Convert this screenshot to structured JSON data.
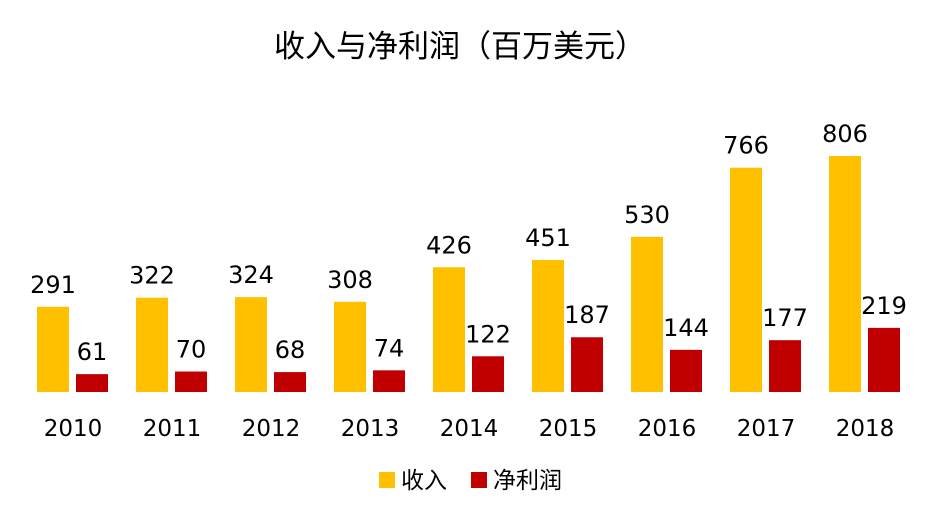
{
  "chart_data": {
    "type": "bar",
    "title": "收入与净利润（百万美元）",
    "categories": [
      "2010",
      "2011",
      "2012",
      "2013",
      "2014",
      "2015",
      "2016",
      "2017",
      "2018"
    ],
    "series": [
      {
        "name": "收入",
        "color": "#FFC000",
        "values": [
          291,
          322,
          324,
          308,
          426,
          451,
          530,
          766,
          806
        ]
      },
      {
        "name": "净利润",
        "color": "#C00000",
        "values": [
          61,
          70,
          68,
          74,
          122,
          187,
          144,
          177,
          219
        ]
      }
    ],
    "ylim": [
      0,
      806
    ],
    "grid": false,
    "legend": "bottom"
  }
}
